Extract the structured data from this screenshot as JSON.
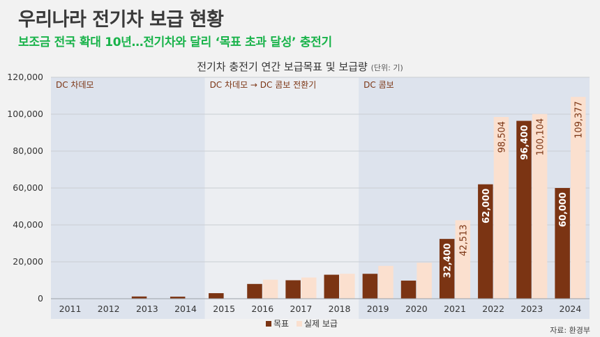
{
  "header": {
    "title": "우리나라 전기차 보급 현황",
    "subtitle": "보조금 전국 확대 10년…전기차와 달리 ‘목표 초과 달성’ 충전기"
  },
  "chart_data": {
    "type": "bar",
    "title": "전기차 충전기 연간 보급목표 및 보급량",
    "unit_note": "(단위: 기)",
    "categories": [
      "2011",
      "2012",
      "2013",
      "2014",
      "2015",
      "2016",
      "2017",
      "2018",
      "2019",
      "2020",
      "2021",
      "2022",
      "2023",
      "2024"
    ],
    "series": [
      {
        "name": "목표",
        "color": "#7b3413",
        "values": [
          0,
          0,
          1200,
          1100,
          3000,
          8000,
          10000,
          13000,
          13500,
          9800,
          32400,
          62000,
          96400,
          60000
        ],
        "labels": [
          "",
          "",
          "",
          "",
          "",
          "",
          "",
          "",
          "",
          "",
          "32,400",
          "62,000",
          "96,400",
          "60,000"
        ]
      },
      {
        "name": "실제 보급",
        "color": "#fbe0cf",
        "values": [
          0,
          0,
          0,
          0,
          0,
          10300,
          11500,
          13500,
          17800,
          19500,
          42513,
          98504,
          100104,
          109377
        ],
        "labels": [
          "",
          "",
          "",
          "",
          "",
          "",
          "",
          "",
          "",
          "",
          "42,513",
          "98,504",
          "100,104",
          "109,377"
        ]
      }
    ],
    "ylim": [
      0,
      120000
    ],
    "yticks": [
      0,
      20000,
      40000,
      60000,
      80000,
      100000,
      120000
    ],
    "ytick_labels": [
      "0",
      "20,000",
      "40,000",
      "60,000",
      "80,000",
      "100,000",
      "120,000"
    ],
    "periods": [
      {
        "label": "DC 차데모",
        "from": 0,
        "to": 3,
        "color": "#dde3ed"
      },
      {
        "label": "DC 차데모 → DC 콤보 전환기",
        "from": 4,
        "to": 7,
        "color": "#eceef2"
      },
      {
        "label": "DC 콤보",
        "from": 8,
        "to": 13,
        "color": "#dde3ed"
      }
    ],
    "legend": "bottom",
    "grid": true
  },
  "footer": {
    "source": "자료: 환경부"
  }
}
